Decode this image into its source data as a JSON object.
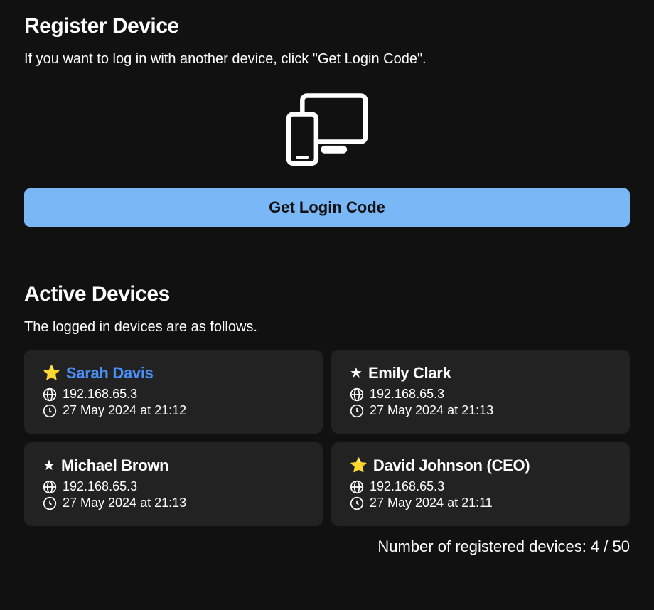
{
  "register": {
    "title": "Register Device",
    "description": "If you want to log in with another device, click \"Get Login Code\".",
    "button_label": "Get Login Code"
  },
  "active": {
    "title": "Active Devices",
    "description": "The logged in devices are as follows.",
    "devices": [
      {
        "name": "Sarah Davis",
        "ip": "192.168.65.3",
        "time": "27 May 2024 at 21:12",
        "star": "gold",
        "highlight": true
      },
      {
        "name": "Emily Clark",
        "ip": "192.168.65.3",
        "time": "27 May 2024 at 21:13",
        "star": "white",
        "highlight": false
      },
      {
        "name": "Michael Brown",
        "ip": "192.168.65.3",
        "time": "27 May 2024 at 21:13",
        "star": "white",
        "highlight": false
      },
      {
        "name": "David Johnson (CEO)",
        "ip": "192.168.65.3",
        "time": "27 May 2024 at 21:11",
        "star": "gold",
        "highlight": false
      }
    ],
    "footer_prefix": "Number of registered devices: ",
    "footer_count": "4 / 50"
  },
  "colors": {
    "background": "#111111",
    "card_background": "#222222",
    "button_background": "#7ab7f6",
    "highlight_name": "#4a8ff7",
    "text": "#ffffff"
  }
}
